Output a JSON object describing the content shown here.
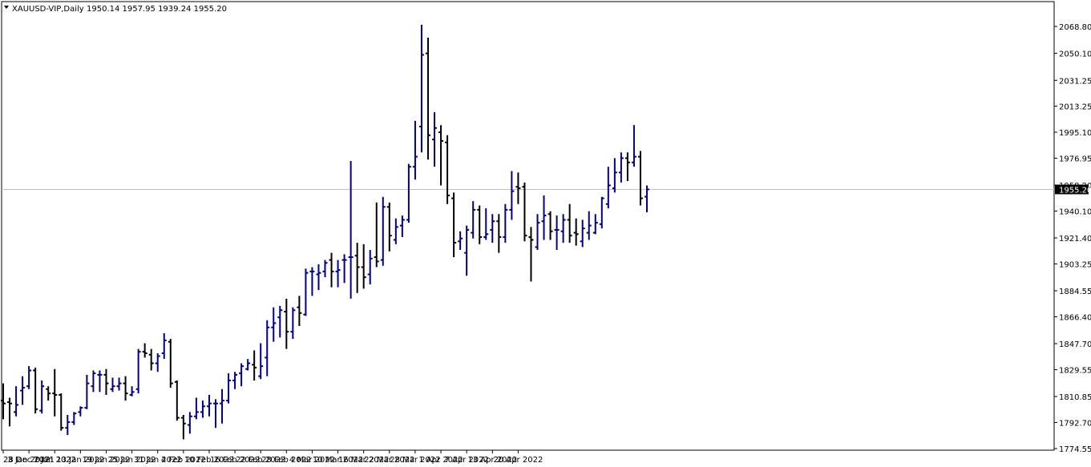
{
  "header": {
    "symbol": "XAUUSD-VIP,Daily",
    "ohlc": "1950.14 1957.95 1939.24 1955.20",
    "menu_icon": "triangle-down-icon"
  },
  "chart_data": {
    "type": "ohlc",
    "symbol": "XAUUSD-VIP",
    "timeframe": "Daily",
    "ylim": [
      1774.55,
      2068.8
    ],
    "y_ticks": [
      "2068.80",
      "2050.10",
      "2031.25",
      "2013.25",
      "1995.10",
      "1976.95",
      "1958.20",
      "1940.10",
      "1921.40",
      "1903.25",
      "1884.55",
      "1866.40",
      "1847.70",
      "1829.55",
      "1810.85",
      "1792.70",
      "1774.55"
    ],
    "x_ticks": [
      "28 Dec 2021",
      "3 Jan 2022",
      "7 Jan 2022",
      "13 Jan 2022",
      "19 Jan 2022",
      "25 Jan 2022",
      "31 Jan 2022",
      "4 Feb 2022",
      "10 Feb 2022",
      "16 Feb 2022",
      "22 Feb 2022",
      "28 Feb 2022",
      "4 Mar 2022",
      "10 Mar 2022",
      "16 Mar 2022",
      "22 Mar 2022",
      "28 Mar 2022",
      "1 Apr 2022",
      "7 Apr 2022",
      "13 Apr 2022",
      "20 Apr 2022"
    ],
    "current_price": "1955.20",
    "colors": {
      "bull": "#000080",
      "bear": "#000000",
      "price_line": "#c0c0c0",
      "price_label_bg": "#000000",
      "price_label_text": "#ffffff"
    },
    "bars": [
      {
        "o": 1808,
        "h": 1820,
        "l": 1795,
        "c": 1806
      },
      {
        "o": 1807,
        "h": 1810,
        "l": 1790,
        "c": 1806
      },
      {
        "o": 1800,
        "h": 1818,
        "l": 1797,
        "c": 1805
      },
      {
        "o": 1815,
        "h": 1825,
        "l": 1805,
        "c": 1817
      },
      {
        "o": 1818,
        "h": 1832,
        "l": 1816,
        "c": 1829
      },
      {
        "o": 1829,
        "h": 1831,
        "l": 1799,
        "c": 1802
      },
      {
        "o": 1801,
        "h": 1822,
        "l": 1799,
        "c": 1818
      },
      {
        "o": 1816,
        "h": 1818,
        "l": 1808,
        "c": 1813
      },
      {
        "o": 1813,
        "h": 1830,
        "l": 1797,
        "c": 1812
      },
      {
        "o": 1812,
        "h": 1813,
        "l": 1787,
        "c": 1789
      },
      {
        "o": 1789,
        "h": 1798,
        "l": 1784,
        "c": 1793
      },
      {
        "o": 1793,
        "h": 1800,
        "l": 1791,
        "c": 1799
      },
      {
        "o": 1800,
        "h": 1804,
        "l": 1797,
        "c": 1803
      },
      {
        "o": 1803,
        "h": 1826,
        "l": 1802,
        "c": 1820
      },
      {
        "o": 1818,
        "h": 1829,
        "l": 1814,
        "c": 1827
      },
      {
        "o": 1826,
        "h": 1829,
        "l": 1814,
        "c": 1826
      },
      {
        "o": 1826,
        "h": 1830,
        "l": 1812,
        "c": 1820
      },
      {
        "o": 1816,
        "h": 1824,
        "l": 1814,
        "c": 1818
      },
      {
        "o": 1818,
        "h": 1824,
        "l": 1815,
        "c": 1820
      },
      {
        "o": 1820,
        "h": 1825,
        "l": 1808,
        "c": 1813
      },
      {
        "o": 1812,
        "h": 1818,
        "l": 1811,
        "c": 1814
      },
      {
        "o": 1816,
        "h": 1844,
        "l": 1813,
        "c": 1842
      },
      {
        "o": 1842,
        "h": 1848,
        "l": 1838,
        "c": 1841
      },
      {
        "o": 1840,
        "h": 1844,
        "l": 1829,
        "c": 1834
      },
      {
        "o": 1834,
        "h": 1841,
        "l": 1828,
        "c": 1839
      },
      {
        "o": 1841,
        "h": 1855,
        "l": 1837,
        "c": 1850
      },
      {
        "o": 1849,
        "h": 1851,
        "l": 1817,
        "c": 1820
      },
      {
        "o": 1821,
        "h": 1822,
        "l": 1794,
        "c": 1796
      },
      {
        "o": 1796,
        "h": 1798,
        "l": 1781,
        "c": 1792
      },
      {
        "o": 1791,
        "h": 1800,
        "l": 1785,
        "c": 1797
      },
      {
        "o": 1797,
        "h": 1810,
        "l": 1795,
        "c": 1800
      },
      {
        "o": 1800,
        "h": 1808,
        "l": 1796,
        "c": 1804
      },
      {
        "o": 1804,
        "h": 1812,
        "l": 1797,
        "c": 1806
      },
      {
        "o": 1806,
        "h": 1809,
        "l": 1789,
        "c": 1806
      },
      {
        "o": 1806,
        "h": 1816,
        "l": 1792,
        "c": 1808
      },
      {
        "o": 1808,
        "h": 1827,
        "l": 1806,
        "c": 1822
      },
      {
        "o": 1822,
        "h": 1828,
        "l": 1816,
        "c": 1826
      },
      {
        "o": 1827,
        "h": 1834,
        "l": 1818,
        "c": 1832
      },
      {
        "o": 1830,
        "h": 1837,
        "l": 1829,
        "c": 1834
      },
      {
        "o": 1833,
        "h": 1843,
        "l": 1822,
        "c": 1831
      },
      {
        "o": 1825,
        "h": 1848,
        "l": 1823,
        "c": 1832
      },
      {
        "o": 1838,
        "h": 1864,
        "l": 1825,
        "c": 1859
      },
      {
        "o": 1859,
        "h": 1873,
        "l": 1849,
        "c": 1862
      },
      {
        "o": 1866,
        "h": 1874,
        "l": 1852,
        "c": 1871
      },
      {
        "o": 1870,
        "h": 1879,
        "l": 1844,
        "c": 1856
      },
      {
        "o": 1856,
        "h": 1873,
        "l": 1851,
        "c": 1871
      },
      {
        "o": 1873,
        "h": 1881,
        "l": 1860,
        "c": 1869
      },
      {
        "o": 1868,
        "h": 1900,
        "l": 1867,
        "c": 1897
      },
      {
        "o": 1898,
        "h": 1901,
        "l": 1881,
        "c": 1898
      },
      {
        "o": 1896,
        "h": 1903,
        "l": 1885,
        "c": 1897
      },
      {
        "o": 1898,
        "h": 1906,
        "l": 1894,
        "c": 1904
      },
      {
        "o": 1906,
        "h": 1911,
        "l": 1887,
        "c": 1898
      },
      {
        "o": 1898,
        "h": 1906,
        "l": 1887,
        "c": 1899
      },
      {
        "o": 1906,
        "h": 1910,
        "l": 1890,
        "c": 1906
      },
      {
        "o": 1908,
        "h": 1975,
        "l": 1879,
        "c": 1908
      },
      {
        "o": 1909,
        "h": 1918,
        "l": 1883,
        "c": 1901
      },
      {
        "o": 1901,
        "h": 1917,
        "l": 1886,
        "c": 1894
      },
      {
        "o": 1896,
        "h": 1913,
        "l": 1889,
        "c": 1907
      },
      {
        "o": 1908,
        "h": 1946,
        "l": 1901,
        "c": 1905
      },
      {
        "o": 1906,
        "h": 1950,
        "l": 1902,
        "c": 1943
      },
      {
        "o": 1943,
        "h": 1946,
        "l": 1912,
        "c": 1923
      },
      {
        "o": 1920,
        "h": 1935,
        "l": 1917,
        "c": 1929
      },
      {
        "o": 1930,
        "h": 1937,
        "l": 1922,
        "c": 1934
      },
      {
        "o": 1934,
        "h": 1973,
        "l": 1932,
        "c": 1971
      },
      {
        "o": 1971,
        "h": 2003,
        "l": 1962,
        "c": 1978
      },
      {
        "o": 1999,
        "h": 2070,
        "l": 1981,
        "c": 2049
      },
      {
        "o": 2050,
        "h": 2061,
        "l": 1976,
        "c": 1993
      },
      {
        "o": 1990,
        "h": 2009,
        "l": 1971,
        "c": 1998
      },
      {
        "o": 1995,
        "h": 2000,
        "l": 1958,
        "c": 1989
      },
      {
        "o": 1988,
        "h": 1993,
        "l": 1945,
        "c": 1951
      },
      {
        "o": 1949,
        "h": 1953,
        "l": 1908,
        "c": 1918
      },
      {
        "o": 1919,
        "h": 1926,
        "l": 1913,
        "c": 1921
      },
      {
        "o": 1911,
        "h": 1930,
        "l": 1895,
        "c": 1927
      },
      {
        "o": 1925,
        "h": 1947,
        "l": 1921,
        "c": 1941
      },
      {
        "o": 1941,
        "h": 1944,
        "l": 1917,
        "c": 1922
      },
      {
        "o": 1922,
        "h": 1942,
        "l": 1920,
        "c": 1924
      },
      {
        "o": 1927,
        "h": 1938,
        "l": 1918,
        "c": 1933
      },
      {
        "o": 1933,
        "h": 1938,
        "l": 1911,
        "c": 1922
      },
      {
        "o": 1922,
        "h": 1945,
        "l": 1918,
        "c": 1941
      },
      {
        "o": 1941,
        "h": 1968,
        "l": 1934,
        "c": 1954
      },
      {
        "o": 1957,
        "h": 1967,
        "l": 1945,
        "c": 1956
      },
      {
        "o": 1957,
        "h": 1960,
        "l": 1919,
        "c": 1923
      },
      {
        "o": 1922,
        "h": 1929,
        "l": 1891,
        "c": 1920
      },
      {
        "o": 1915,
        "h": 1938,
        "l": 1913,
        "c": 1932
      },
      {
        "o": 1933,
        "h": 1951,
        "l": 1920,
        "c": 1937
      },
      {
        "o": 1938,
        "h": 1940,
        "l": 1920,
        "c": 1926
      },
      {
        "o": 1927,
        "h": 1937,
        "l": 1913,
        "c": 1927
      },
      {
        "o": 1926,
        "h": 1938,
        "l": 1918,
        "c": 1934
      },
      {
        "o": 1934,
        "h": 1945,
        "l": 1918,
        "c": 1923
      },
      {
        "o": 1925,
        "h": 1935,
        "l": 1916,
        "c": 1924
      },
      {
        "o": 1919,
        "h": 1934,
        "l": 1915,
        "c": 1928
      },
      {
        "o": 1925,
        "h": 1940,
        "l": 1920,
        "c": 1930
      },
      {
        "o": 1925,
        "h": 1938,
        "l": 1924,
        "c": 1932
      },
      {
        "o": 1931,
        "h": 1950,
        "l": 1928,
        "c": 1949
      },
      {
        "o": 1945,
        "h": 1971,
        "l": 1942,
        "c": 1958
      },
      {
        "o": 1956,
        "h": 1977,
        "l": 1953,
        "c": 1967
      },
      {
        "o": 1967,
        "h": 1981,
        "l": 1960,
        "c": 1977
      },
      {
        "o": 1977,
        "h": 1981,
        "l": 1961,
        "c": 1974
      },
      {
        "o": 1974,
        "h": 2000,
        "l": 1971,
        "c": 1978
      },
      {
        "o": 1978,
        "h": 1982,
        "l": 1944,
        "c": 1949
      },
      {
        "o": 1950.14,
        "h": 1957.95,
        "l": 1939.24,
        "c": 1955.2
      }
    ]
  }
}
